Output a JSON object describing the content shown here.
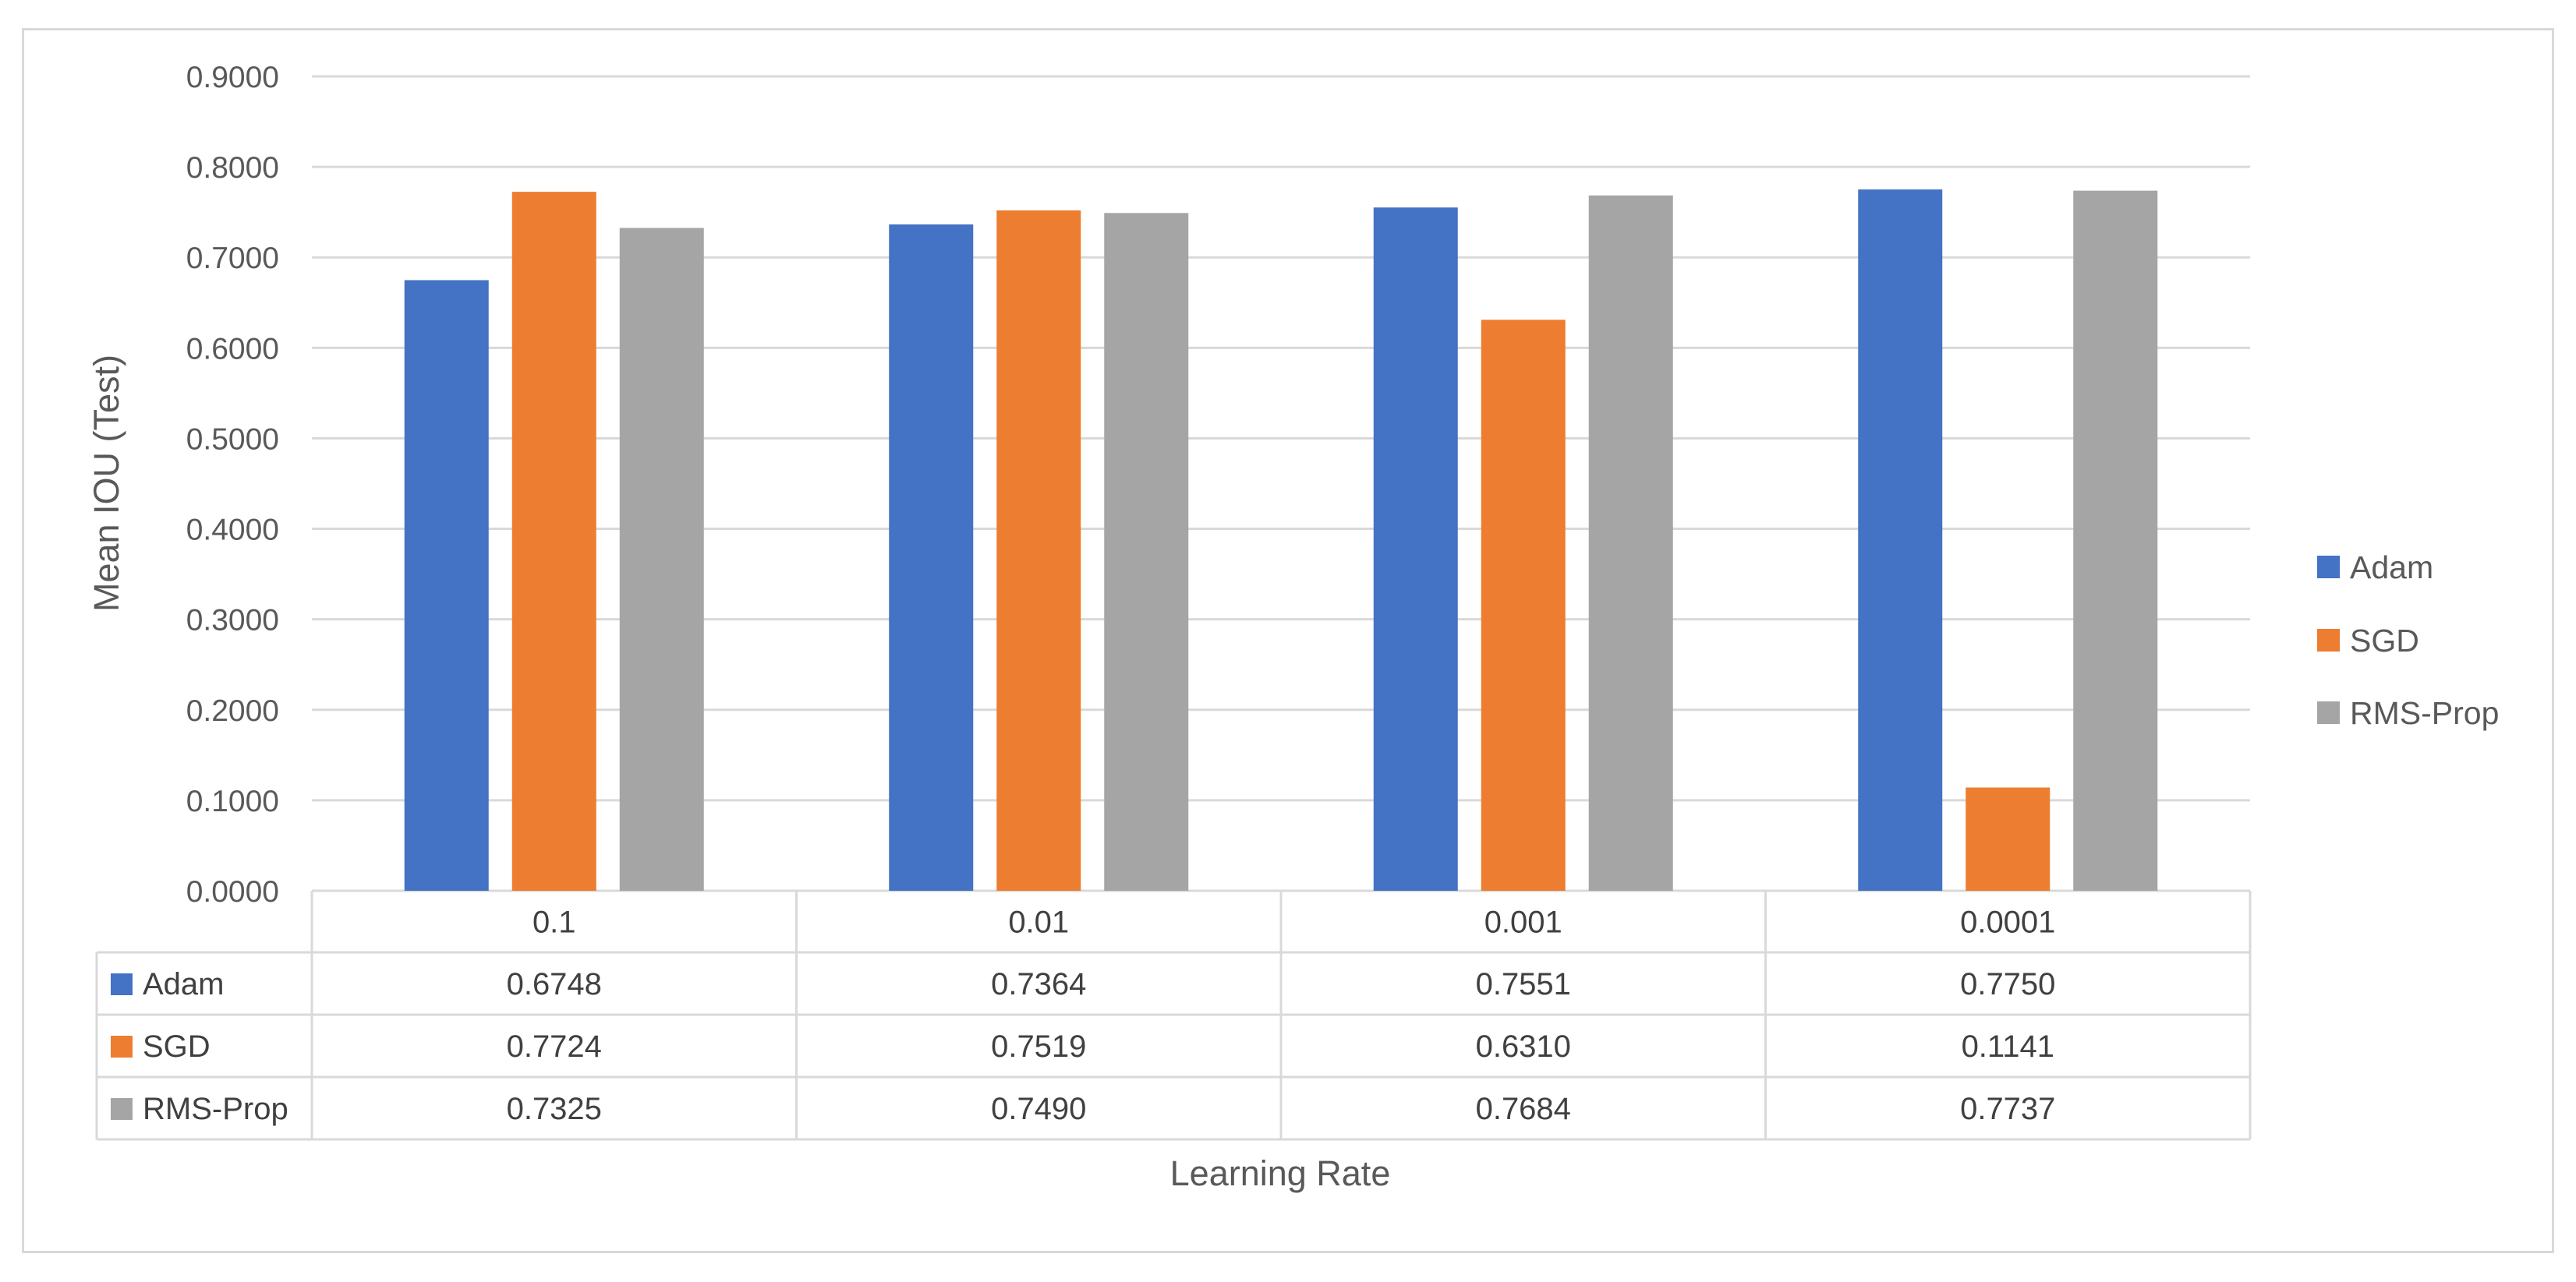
{
  "chart_data": {
    "type": "bar",
    "title": "",
    "xlabel": "Learning Rate",
    "ylabel": "Mean IOU (Test)",
    "categories": [
      "0.1",
      "0.01",
      "0.001",
      "0.0001"
    ],
    "series": [
      {
        "name": "Adam",
        "color": "#4472c4",
        "values": [
          0.6748,
          0.7364,
          0.7551,
          0.775
        ],
        "labels": [
          "0.6748",
          "0.7364",
          "0.7551",
          "0.7750"
        ]
      },
      {
        "name": "SGD",
        "color": "#ed7d31",
        "values": [
          0.7724,
          0.7519,
          0.631,
          0.1141
        ],
        "labels": [
          "0.7724",
          "0.7519",
          "0.6310",
          "0.1141"
        ]
      },
      {
        "name": "RMS-Prop",
        "color": "#a5a5a5",
        "values": [
          0.7325,
          0.749,
          0.7684,
          0.7737
        ],
        "labels": [
          "0.7325",
          "0.7490",
          "0.7684",
          "0.7737"
        ]
      }
    ],
    "ylim": [
      0,
      0.9
    ],
    "yticks": [
      0,
      0.1,
      0.2,
      0.3,
      0.4,
      0.5,
      0.6,
      0.7,
      0.8,
      0.9
    ],
    "ytick_labels": [
      "0.0000",
      "0.1000",
      "0.2000",
      "0.3000",
      "0.4000",
      "0.5000",
      "0.6000",
      "0.7000",
      "0.8000",
      "0.9000"
    ],
    "grid": true,
    "legend_position": "right",
    "data_table": true
  },
  "colors": {
    "gridline": "#d9d9d9",
    "text": "#595959",
    "table_border": "#d9d9d9"
  }
}
